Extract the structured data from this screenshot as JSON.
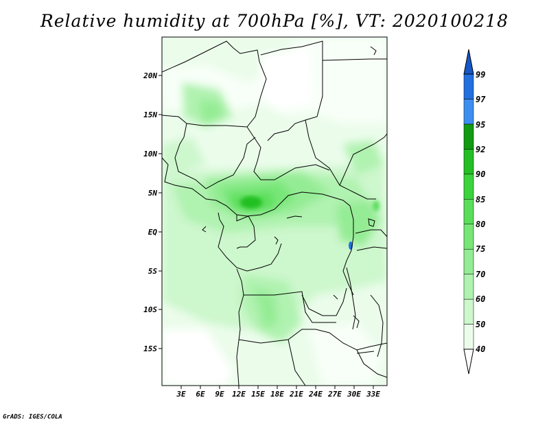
{
  "title": "Relative humidity at 700hPa [%], VT: 2020100218",
  "footer": "GrADS: IGES/COLA",
  "map": {
    "lat_labels": [
      "20N",
      "15N",
      "10N",
      "5N",
      "EQ",
      "5S",
      "10S",
      "15S"
    ],
    "lon_labels": [
      "3E",
      "6E",
      "9E",
      "12E",
      "15E",
      "18E",
      "21E",
      "24E",
      "27E",
      "30E",
      "33E"
    ]
  },
  "colorbar": {
    "labels": [
      "40",
      "50",
      "60",
      "70",
      "75",
      "80",
      "85",
      "90",
      "92",
      "95",
      "97",
      "99"
    ],
    "colors": [
      "#ebfceb",
      "#cdf7cd",
      "#b0f2b0",
      "#94ec94",
      "#77e677",
      "#5ade5a",
      "#3cd43c",
      "#24bf24",
      "#129a12",
      "#3c8ff0",
      "#2270e0",
      "#1458c8"
    ]
  }
}
